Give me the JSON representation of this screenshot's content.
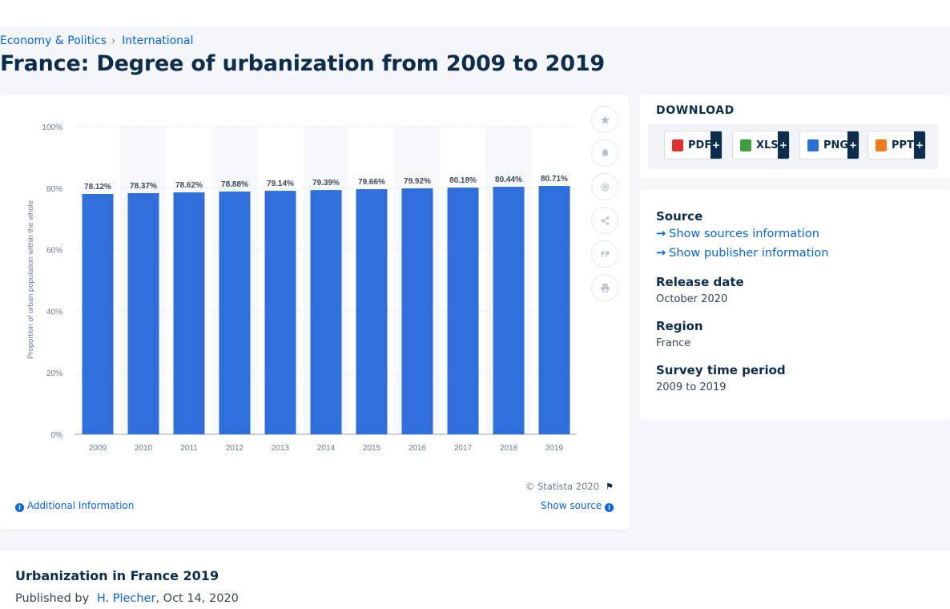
{
  "breadcrumb": {
    "items": [
      "Economy & Politics",
      "International"
    ],
    "separator": "›"
  },
  "page_title": "France: Degree of urbanization from 2009 to 2019",
  "chart_data": {
    "type": "bar",
    "categories": [
      "2009",
      "2010",
      "2011",
      "2012",
      "2013",
      "2014",
      "2015",
      "2016",
      "2017",
      "2018",
      "2019"
    ],
    "values": [
      78.12,
      78.37,
      78.62,
      78.88,
      79.14,
      79.39,
      79.66,
      79.92,
      80.18,
      80.44,
      80.71
    ],
    "data_labels": [
      "78.12%",
      "78.37%",
      "78.62%",
      "78.88%",
      "79.14%",
      "79.39%",
      "79.66%",
      "79.92%",
      "80.18%",
      "80.44%",
      "80.71%"
    ],
    "ylabel": "Proportion of urban population within the whole",
    "xlabel": "",
    "ylim": [
      0,
      100
    ],
    "y_ticks": [
      "0%",
      "20%",
      "40%",
      "60%",
      "80%",
      "100%"
    ],
    "y_tick_values": [
      0,
      20,
      40,
      60,
      80,
      100
    ],
    "bar_color": "#2f6fdc",
    "grid": true
  },
  "chart_footer": {
    "copyright": "© Statista 2020",
    "additional_info": "Additional Information",
    "show_source": "Show source"
  },
  "toolbar": {
    "icons": [
      "star-icon",
      "bell-icon",
      "gear-icon",
      "share-icon",
      "quote-icon",
      "print-icon"
    ]
  },
  "download": {
    "title": "DOWNLOAD",
    "buttons": [
      {
        "label": "PDF",
        "color": "#e0312f"
      },
      {
        "label": "XLS",
        "color": "#3e9f3c"
      },
      {
        "label": "PNG",
        "color": "#2a6fd6"
      },
      {
        "label": "PPT",
        "color": "#f07a1a"
      }
    ],
    "plus": "+"
  },
  "meta": {
    "source_label": "Source",
    "show_sources": "Show sources information",
    "show_publisher": "Show publisher information",
    "release_label": "Release date",
    "release_value": "October 2020",
    "region_label": "Region",
    "region_value": "France",
    "survey_label": "Survey time period",
    "survey_value": "2009 to 2019"
  },
  "article": {
    "title": "Urbanization in France 2019",
    "published_by": "Published by",
    "author": "H. Plecher",
    "date": ", Oct 14, 2020"
  }
}
